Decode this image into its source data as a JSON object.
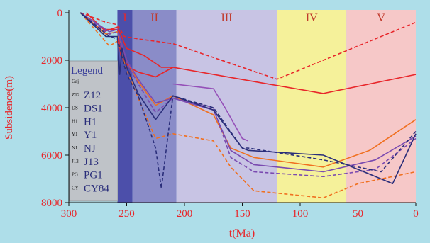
{
  "chart_data": {
    "type": "line",
    "xlabel": "t(Ma)",
    "ylabel": "Subsidence(m)",
    "x_reversed": true,
    "y_reversed": true,
    "xlim": [
      300,
      0
    ],
    "ylim": [
      0,
      8000
    ],
    "x_ticks": [
      300,
      250,
      200,
      150,
      100,
      50,
      0
    ],
    "y_ticks": [
      0,
      2000,
      4000,
      6000,
      8000
    ],
    "stages": [
      {
        "label": "I",
        "from": 258,
        "to": 245,
        "color": "#4c4faa"
      },
      {
        "label": "II",
        "from": 245,
        "to": 207,
        "color": "#8a8cc8"
      },
      {
        "label": "III",
        "from": 207,
        "to": 120,
        "color": "#c8c4e4"
      },
      {
        "label": "IV",
        "from": 120,
        "to": 60,
        "color": "#f5f19a"
      },
      {
        "label": "V",
        "from": 60,
        "to": 0,
        "color": "#f6c8c8"
      }
    ],
    "legend": {
      "title": "Legend",
      "entries": [
        {
          "tag": "Gaj",
          "label": ""
        },
        {
          "tag": "Z12",
          "label": "Z12"
        },
        {
          "tag": "DS",
          "label": "DS1"
        },
        {
          "tag": "H1",
          "label": "H1"
        },
        {
          "tag": "Y1",
          "label": "Y1"
        },
        {
          "tag": "NJ",
          "label": "NJ"
        },
        {
          "tag": "J13",
          "label": "J13"
        },
        {
          "tag": "PG",
          "label": "PG1"
        },
        {
          "tag": "CY",
          "label": "CY84"
        }
      ]
    },
    "series": [
      {
        "color": "#e8262a",
        "dashed": false,
        "x": [
          290,
          270,
          258,
          250,
          235,
          220,
          210,
          140,
          80,
          0
        ],
        "y": [
          0,
          800,
          600,
          1500,
          1800,
          2300,
          2300,
          2900,
          3400,
          2600
        ]
      },
      {
        "color": "#e8262a",
        "dashed": true,
        "x": [
          290,
          268,
          258,
          252,
          240,
          210,
          120,
          0
        ],
        "y": [
          0,
          400,
          500,
          1000,
          1100,
          1300,
          2800,
          400
        ]
      },
      {
        "color": "#e8262a",
        "dashed": false,
        "x": [
          285,
          270,
          258,
          255,
          248,
          240,
          225,
          210
        ],
        "y": [
          0,
          700,
          700,
          1800,
          2300,
          2500,
          2700,
          2300
        ]
      },
      {
        "color": "#f07020",
        "dashed": false,
        "x": [
          290,
          268,
          258,
          250,
          240,
          225,
          210,
          175,
          160,
          140,
          80,
          40,
          0
        ],
        "y": [
          0,
          900,
          800,
          2000,
          2900,
          3900,
          3500,
          4300,
          5700,
          6100,
          6500,
          5800,
          4500
        ]
      },
      {
        "color": "#f07020",
        "dashed": true,
        "x": [
          290,
          265,
          258,
          250,
          240,
          225,
          210,
          175,
          160,
          140,
          80,
          50,
          0
        ],
        "y": [
          0,
          1400,
          1200,
          2400,
          3600,
          5300,
          5100,
          5400,
          6500,
          7500,
          7800,
          7200,
          6700
        ]
      },
      {
        "color": "#7a4ab0",
        "dashed": false,
        "x": [
          290,
          265,
          258,
          250,
          240,
          225,
          210,
          175,
          160,
          140,
          80,
          35,
          0
        ],
        "y": [
          0,
          800,
          700,
          2000,
          2800,
          3800,
          3600,
          4100,
          5800,
          6400,
          6700,
          6200,
          5200
        ]
      },
      {
        "color": "#7a4ab0",
        "dashed": true,
        "x": [
          290,
          265,
          258,
          250,
          240,
          225,
          210,
          175,
          160,
          140,
          80,
          35,
          0
        ],
        "y": [
          0,
          900,
          800,
          2100,
          3000,
          4200,
          3600,
          4000,
          6100,
          6700,
          6900,
          6600,
          5300
        ]
      },
      {
        "color": "#9550b8",
        "dashed": false,
        "x": [
          210,
          175,
          165,
          150,
          145
        ],
        "y": [
          3000,
          3200,
          4000,
          5300,
          5400
        ]
      },
      {
        "color": "#2a2e7a",
        "dashed": false,
        "x": [
          290,
          268,
          258,
          256,
          254,
          250,
          240,
          225,
          210,
          175,
          150,
          145,
          80,
          20,
          0
        ],
        "y": [
          0,
          1000,
          1000,
          2600,
          1500,
          2300,
          3400,
          4500,
          3500,
          4100,
          5700,
          5800,
          6000,
          7200,
          5100
        ]
      },
      {
        "color": "#2a2e7a",
        "dashed": true,
        "x": [
          290,
          265,
          258,
          250,
          240,
          225,
          220,
          210,
          175,
          150,
          145,
          80,
          30,
          0
        ],
        "y": [
          0,
          1000,
          1100,
          2600,
          3500,
          5700,
          7400,
          3500,
          4000,
          5700,
          5700,
          6200,
          6700,
          5000
        ]
      }
    ]
  }
}
